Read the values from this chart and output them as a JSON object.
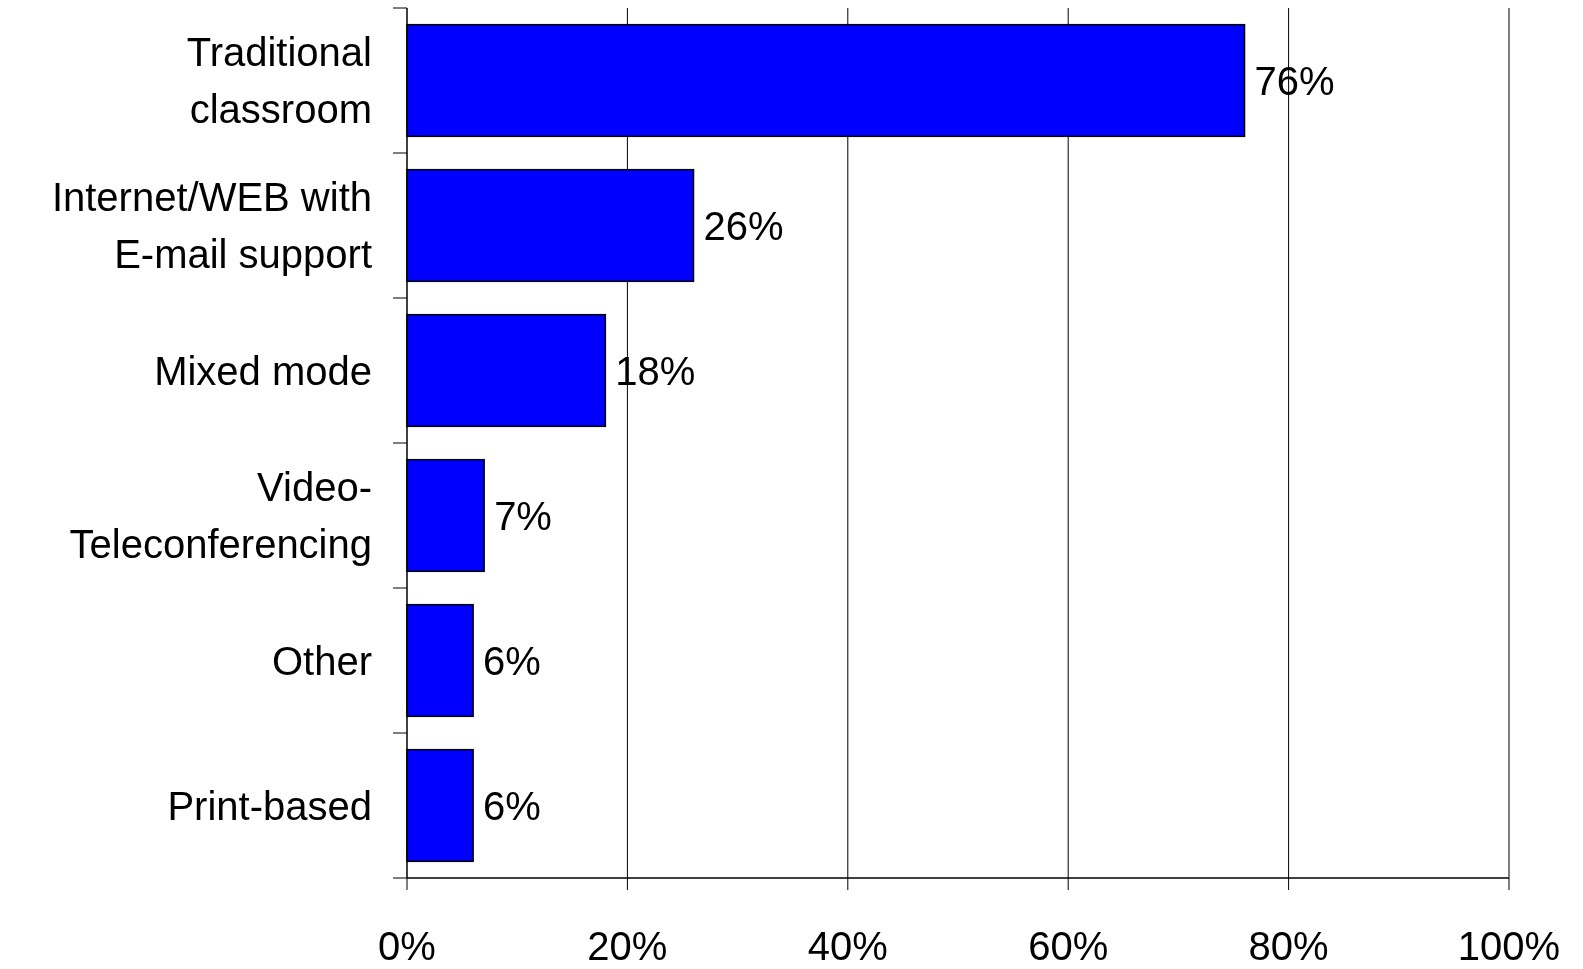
{
  "chart_data": {
    "type": "bar",
    "orientation": "horizontal",
    "categories": [
      "Traditional classroom",
      "Internet/WEB with E-mail support",
      "Mixed mode",
      "Video-Teleconferencing",
      "Other",
      "Print-based"
    ],
    "values": [
      76,
      26,
      18,
      7,
      6,
      6
    ],
    "value_labels": [
      "76%",
      "26%",
      "18%",
      "7%",
      "6%",
      "6%"
    ],
    "color": "#0000ff",
    "xlim": [
      0,
      100
    ],
    "xticks": [
      {
        "value": 0,
        "label": "0%"
      },
      {
        "value": 20,
        "label": "20%"
      },
      {
        "value": 40,
        "label": "40%"
      },
      {
        "value": 60,
        "label": "60%"
      },
      {
        "value": 80,
        "label": "80%"
      },
      {
        "value": 100,
        "label": "100%"
      }
    ],
    "grid": "x"
  }
}
